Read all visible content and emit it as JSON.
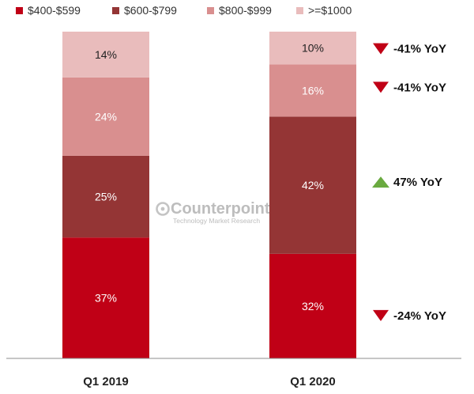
{
  "chart_data": {
    "type": "bar",
    "stacked": true,
    "percent": true,
    "categories": [
      "Q1 2019",
      "Q1 2020"
    ],
    "series": [
      {
        "name": "$400-$599",
        "color": "#c00016",
        "values": [
          37,
          32
        ]
      },
      {
        "name": "$600-$799",
        "color": "#943535",
        "values": [
          25,
          42
        ]
      },
      {
        "name": "$800-$999",
        "color": "#d98f8f",
        "values": [
          24,
          16
        ]
      },
      {
        "name": ">=$1000",
        "color": "#e9bcbc",
        "values": [
          14,
          10
        ]
      }
    ],
    "data_labels": [
      [
        "37%",
        "25%",
        "24%",
        "14%"
      ],
      [
        "32%",
        "42%",
        "16%",
        "10%"
      ]
    ],
    "yoy_changes": [
      {
        "series": "$400-$599",
        "label": "-24% YoY",
        "direction": "down"
      },
      {
        "series": "$600-$799",
        "label": "47% YoY",
        "direction": "up"
      },
      {
        "series": "$800-$999",
        "label": "-41% YoY",
        "direction": "down"
      },
      {
        "series": ">=$1000",
        "label": "-41% YoY",
        "direction": "down"
      }
    ],
    "legend_position": "top",
    "title": "",
    "xlabel": "",
    "ylabel": "",
    "grid": false
  },
  "watermark": {
    "title": "Counterpoint",
    "subtitle": "Technology Market Research"
  },
  "colors": {
    "down_arrow": "#c00016",
    "up_arrow": "#6aaa40",
    "axis": "#8c8c8c"
  }
}
